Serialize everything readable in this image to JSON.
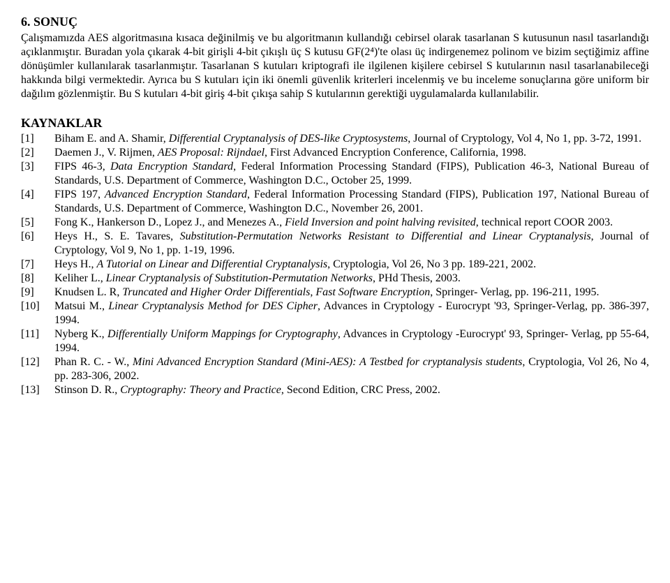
{
  "section": {
    "heading": "6. SONUÇ",
    "body": "Çalışmamızda AES algoritmasına kısaca değinilmiş ve bu algoritmanın kullandığı cebirsel olarak tasarlanan S kutusunun nasıl tasarlandığı açıklanmıştır. Buradan yola çıkarak 4-bit girişli 4-bit çıkışlı üç S kutusu GF(2⁴)'te olası üç indirgenemez polinom ve bizim seçtiğimiz affine dönüşümler kullanılarak tasarlanmıştır. Tasarlanan S kutuları kriptografi ile ilgilenen kişilere cebirsel S kutularının nasıl tasarlanabileceği hakkında bilgi vermektedir. Ayrıca bu S kutuları için iki önemli güvenlik kriterleri incelenmiş ve bu inceleme sonuçlarına göre uniform bir dağılım gözlenmiştir. Bu S kutuları 4-bit giriş 4-bit çıkışa sahip S kutularının gerektiği uygulamalarda kullanılabilir."
  },
  "references": {
    "heading": "KAYNAKLAR",
    "items": [
      {
        "num": "[1]",
        "html": "Biham E. and A. Shamir, <i>Differential Cryptanalysis of DES-like Cryptosystems</i>, Journal of Cryptology, Vol 4, No 1, pp. 3-72, 1991."
      },
      {
        "num": "[2]",
        "html": "Daemen J., V. Rijmen, <i>AES Proposal: Rijndael</i>, First Advanced Encryption Conference, California, 1998."
      },
      {
        "num": "[3]",
        "html": "FIPS 46-3, <i>Data Encryption Standard</i>, Federal Information Processing Standard (FIPS), Publication 46-3, National Bureau of Standards, U.S. Department of Commerce, Washington D.C., October 25, 1999."
      },
      {
        "num": "[4]",
        "html": "FIPS 197, <i>Advanced Encryption Standard</i>, Federal Information Processing Standard (FIPS), Publication 197, National Bureau of Standards, U.S. Department of Commerce, Washington D.C., November 26, 2001."
      },
      {
        "num": "[5]",
        "html": "Fong K., Hankerson D., Lopez J., and Menezes A., <i>Field Inversion and point halving revisited</i>, technical report COOR 2003."
      },
      {
        "num": "[6]",
        "html": "Heys H., S. E. Tavares, <i>Substitution-Permutation Networks Resistant to Differential and Linear Cryptanalysis</i>, Journal of Cryptology, Vol 9, No 1, pp. 1-19, 1996."
      },
      {
        "num": "[7]",
        "html": "Heys H., <i>A Tutorial on Linear and Differential Cryptanalysis</i>, Cryptologia, Vol 26, No 3 pp. 189-221, 2002."
      },
      {
        "num": "[8]",
        "html": "Keliher L., <i>Linear Cryptanalysis of Substitution-Permutation Networks</i>, PHd Thesis, 2003."
      },
      {
        "num": "[9]",
        "html": "Knudsen L. R, <i>Truncated and Higher Order Differentials, Fast Software Encryption</i>, Springer- Verlag, pp. 196-211, 1995."
      },
      {
        "num": "[10]",
        "html": "Matsui M., <i>Linear Cryptanalysis Method for DES Cipher</i>, Advances in Cryptology - Eurocrypt '93, Springer-Verlag, pp. 386-397, 1994."
      },
      {
        "num": "[11]",
        "html": "Nyberg K., <i>Differentially Uniform Mappings for Cryptography</i>, Advances in Cryptology -Eurocrypt' 93, Springer- Verlag, pp 55-64, 1994."
      },
      {
        "num": "[12]",
        "html": "Phan R. C. - W., <i>Mini Advanced Encryption Standard (Mini-AES): A Testbed for cryptanalysis students</i>, Cryptologia, Vol 26, No 4, pp. 283-306, 2002."
      },
      {
        "num": "[13]",
        "html": "Stinson D. R., <i>Cryptography: Theory and Practice</i>, Second Edition, CRC Press, 2002."
      }
    ]
  },
  "style": {
    "font_family": "Times New Roman",
    "body_fontsize_pt": 12,
    "heading_fontsize_pt": 13,
    "text_color": "#000000",
    "background_color": "#ffffff",
    "justify": true,
    "italic_titles": true
  }
}
